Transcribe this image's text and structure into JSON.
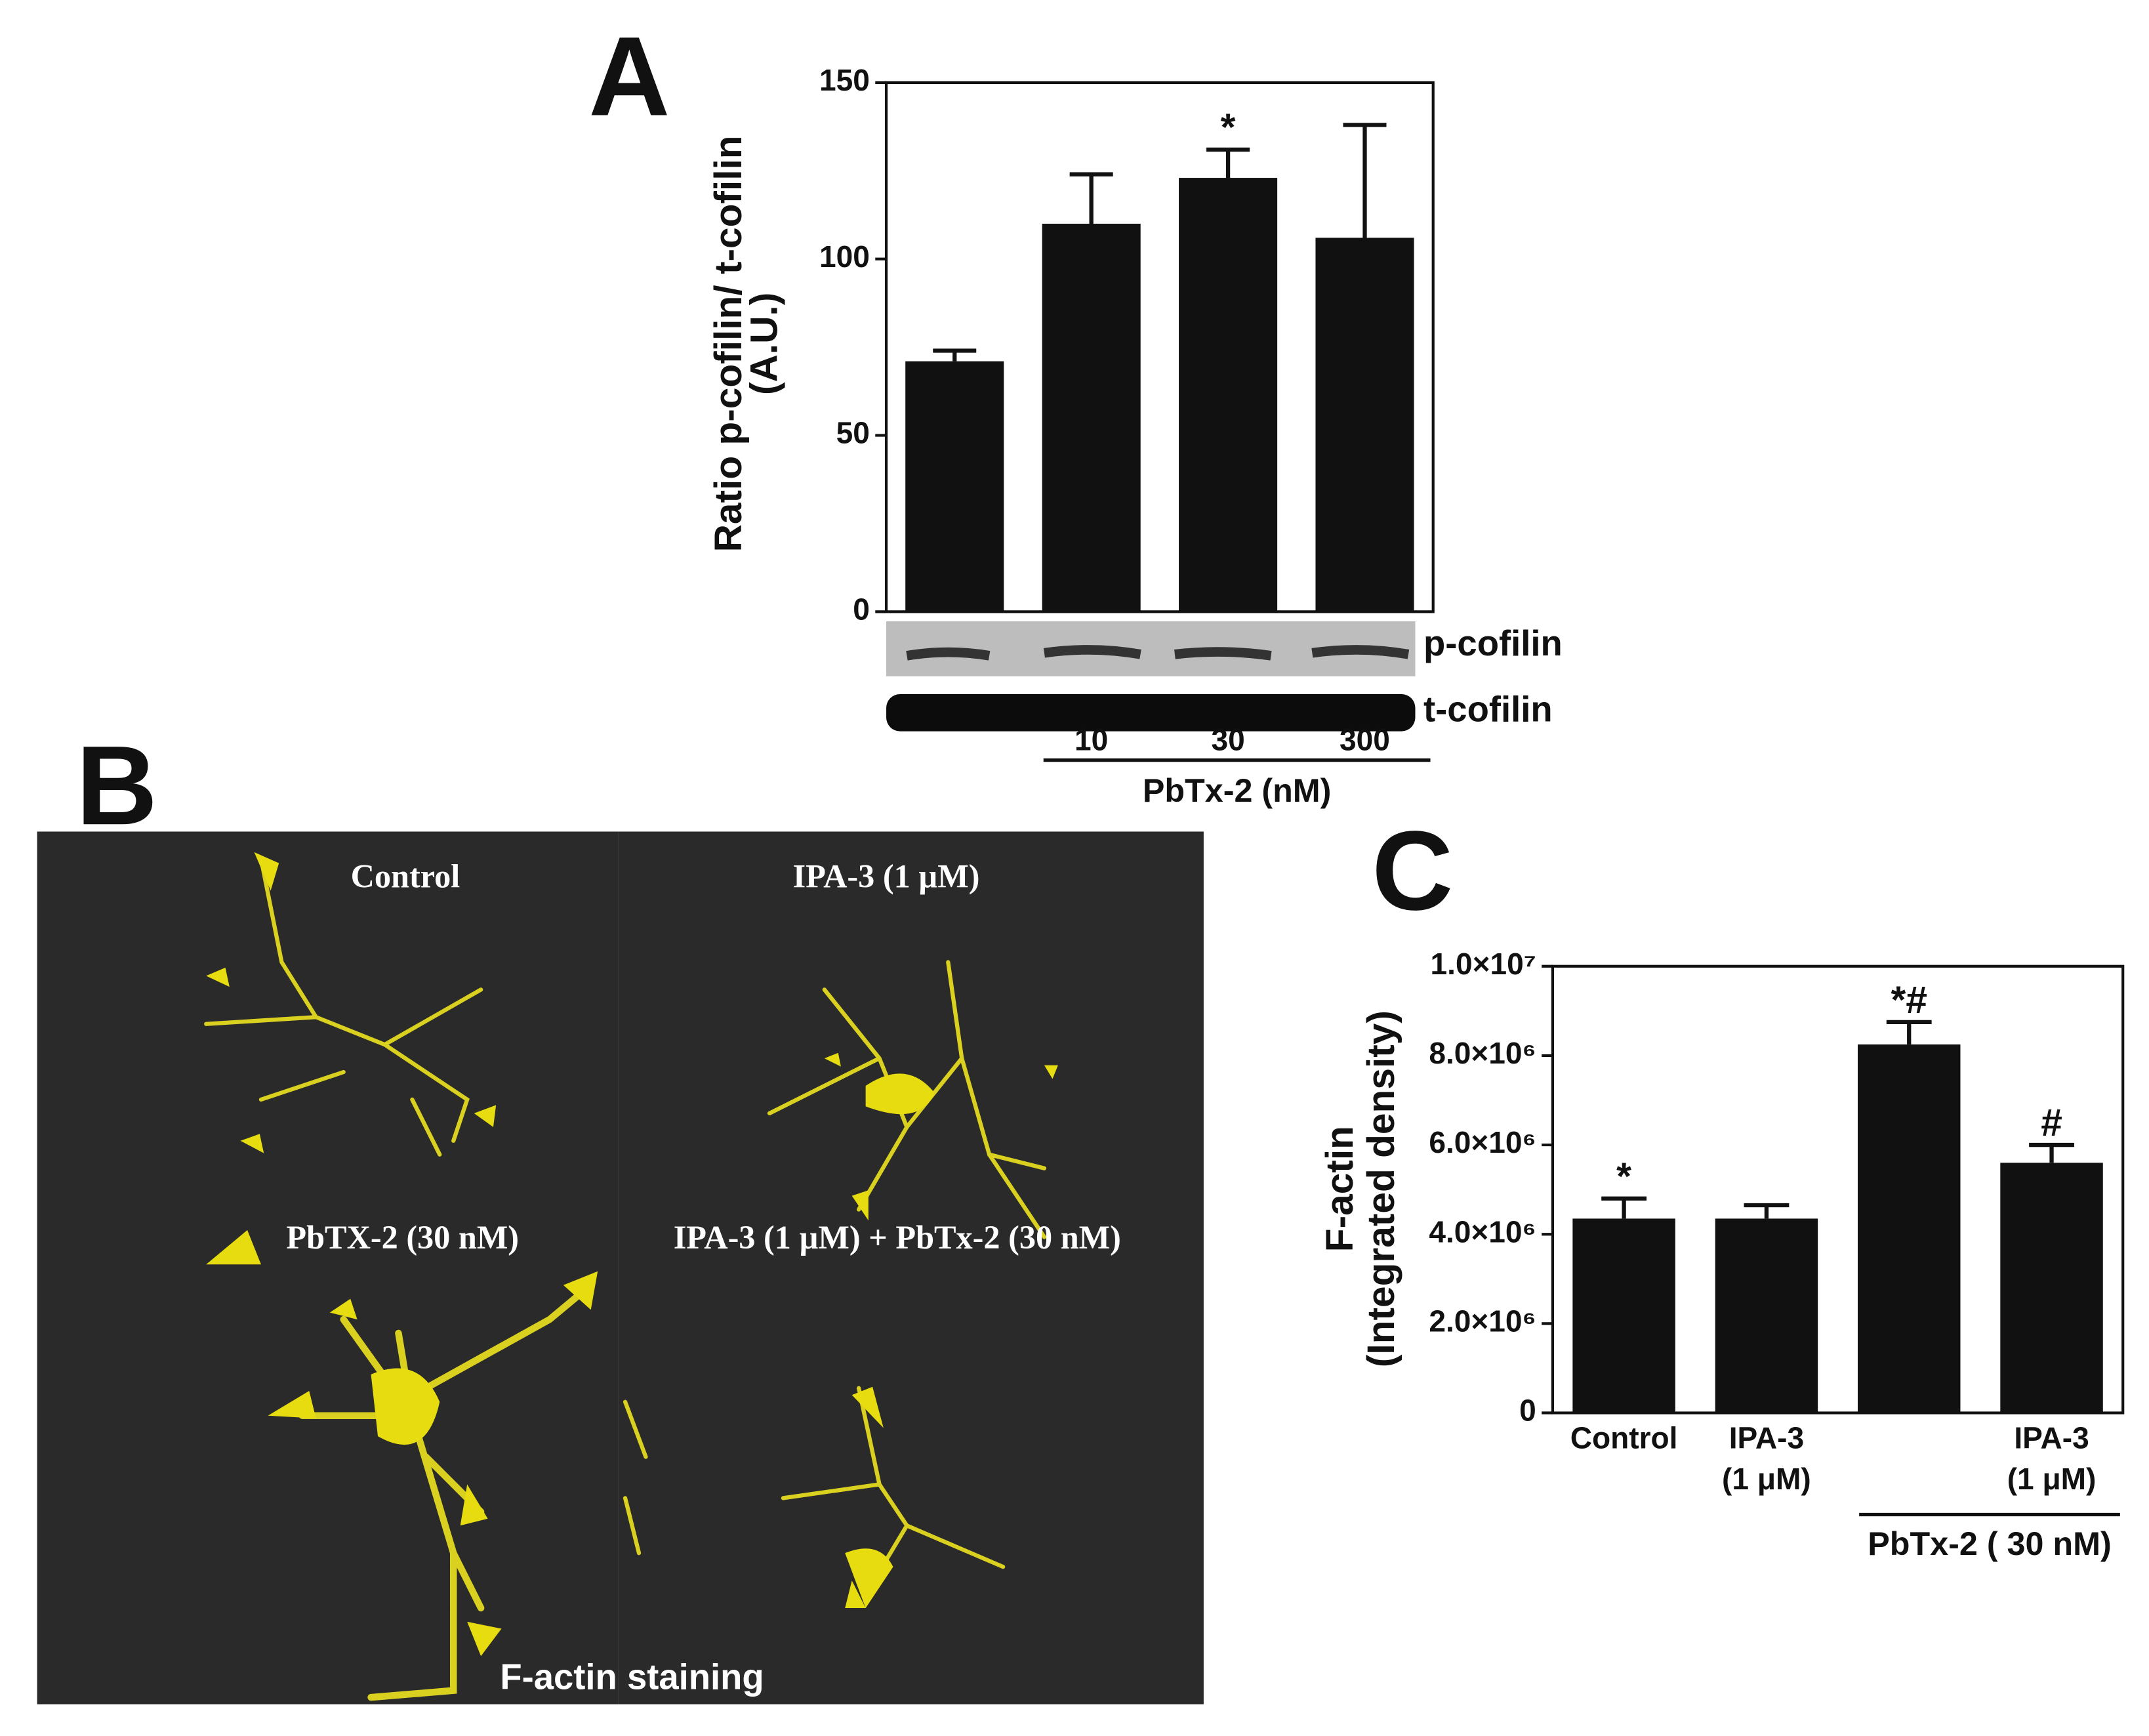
{
  "panels": {
    "a": "A",
    "b": "B",
    "c": "C"
  },
  "blot": {
    "p_label": "p-cofilin",
    "t_label": "t-cofilin"
  },
  "images": {
    "labels": [
      "Control",
      "IPA-3 (1 µM)",
      "PbTX-2 (30 nM)",
      "IPA-3 (1 µM) + PbTx-2 (30 nM)"
    ],
    "caption": "F-actin staining"
  },
  "chart_data": [
    {
      "type": "bar",
      "y_label": [
        "Ratio p-cofilin/ t-cofilin",
        "(A.U.)"
      ],
      "categories": [
        null,
        "10",
        "30",
        "300"
      ],
      "values": [
        71,
        110,
        123,
        106
      ],
      "errors": [
        3,
        14,
        8,
        32
      ],
      "annotations": [
        {
          "index": 2,
          "text": "*"
        }
      ],
      "group_label": "PbTx-2 (nM)",
      "color": "#111111",
      "ylim": [
        0,
        150
      ],
      "yticks": [
        0,
        50,
        100,
        150
      ]
    },
    {
      "type": "bar",
      "y_label": [
        "F-actin",
        "(Integrated density)"
      ],
      "categories": [
        "Control",
        "IPA-3 (1 μM)",
        null,
        "IPA-3 (1 μM)"
      ],
      "values": [
        4350000,
        4350000,
        8250000,
        5600000
      ],
      "errors": [
        450000,
        300000,
        500000,
        400000
      ],
      "annotations": [
        {
          "index": 0,
          "text": "*"
        },
        {
          "index": 2,
          "text": "*#"
        },
        {
          "index": 3,
          "text": "#"
        }
      ],
      "group_label": "PbTx-2 ( 30 nM)",
      "color": "#111111",
      "ylim": [
        0,
        10000000
      ],
      "yticks": [
        0,
        {
          "value": 2000000,
          "label": "2.0×10⁶"
        },
        {
          "value": 4000000,
          "label": "4.0×10⁶"
        },
        {
          "value": 6000000,
          "label": "6.0×10⁶"
        },
        {
          "value": 8000000,
          "label": "8.0×10⁶"
        },
        {
          "value": 10000000,
          "label": "1.0×10⁷"
        }
      ]
    }
  ]
}
